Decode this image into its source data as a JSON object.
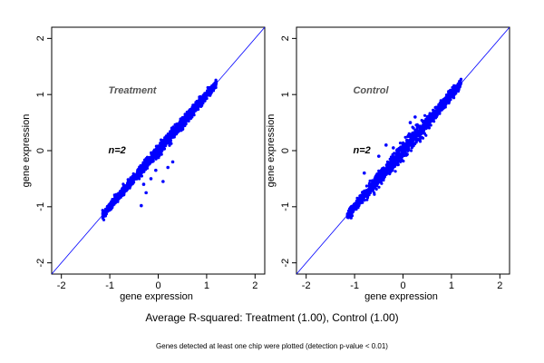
{
  "chart_data": [
    {
      "type": "scatter",
      "panel_label": "Treatment",
      "n_label": "n=2",
      "xlabel": "gene expression",
      "ylabel": "gene expression",
      "xlim": [
        -2.2,
        2.2
      ],
      "ylim": [
        -2.2,
        2.2
      ],
      "xticks": [
        -2,
        -1,
        0,
        1,
        2
      ],
      "yticks": [
        -2,
        -1,
        0,
        1,
        2
      ],
      "reference_line": "y = x",
      "point_color": "#0000ff",
      "line_color": "#0000ff",
      "main_band": {
        "x_from": -1.15,
        "x_to": 1.2,
        "spread_ends": 0.07,
        "spread_middle": 0.12
      },
      "outliers": [
        {
          "x": -0.3,
          "y": -0.6
        },
        {
          "x": -0.25,
          "y": -0.75
        },
        {
          "x": -0.35,
          "y": -0.98
        },
        {
          "x": -0.05,
          "y": -0.35
        },
        {
          "x": 0.2,
          "y": -0.3
        },
        {
          "x": 0.3,
          "y": -0.2
        },
        {
          "x": 0.1,
          "y": -0.55
        },
        {
          "x": -0.15,
          "y": -0.5
        },
        {
          "x": -0.45,
          "y": -0.45
        },
        {
          "x": 0.05,
          "y": 0.08
        },
        {
          "x": 0.0,
          "y": -0.12
        }
      ]
    },
    {
      "type": "scatter",
      "panel_label": "Control",
      "n_label": "n=2",
      "xlabel": "gene expression",
      "ylabel": "gene expression",
      "xlim": [
        -2.2,
        2.2
      ],
      "ylim": [
        -2.2,
        2.2
      ],
      "xticks": [
        -2,
        -1,
        0,
        1,
        2
      ],
      "yticks": [
        -2,
        -1,
        0,
        1,
        2
      ],
      "reference_line": "y = x",
      "point_color": "#0000ff",
      "line_color": "#0000ff",
      "main_band": {
        "x_from": -1.15,
        "x_to": 1.2,
        "spread_ends": 0.08,
        "spread_middle": 0.17
      },
      "outliers": [
        {
          "x": -0.7,
          "y": -0.7
        },
        {
          "x": -0.8,
          "y": -0.4
        },
        {
          "x": -0.2,
          "y": 0.05
        },
        {
          "x": -0.5,
          "y": -0.1
        },
        {
          "x": 0.15,
          "y": 0.5
        },
        {
          "x": 0.25,
          "y": 0.6
        },
        {
          "x": -0.35,
          "y": 0.1
        },
        {
          "x": 0.6,
          "y": 0.6
        }
      ]
    }
  ],
  "caption_main": "Average R-squared: Treatment (1.00), Control (1.00)",
  "caption_note": "Genes detected at least one chip were plotted (detection p-value < 0.01)"
}
